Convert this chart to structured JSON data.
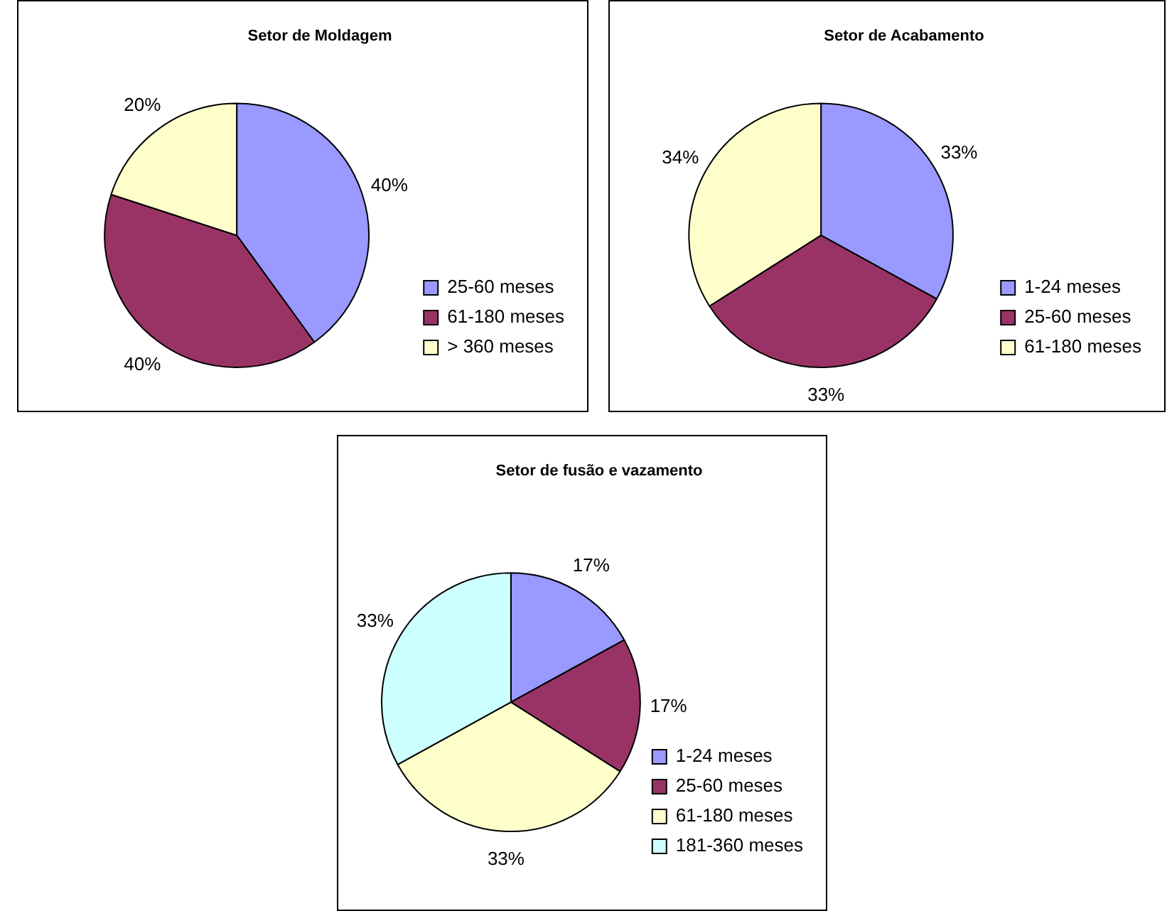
{
  "chart_data": [
    {
      "type": "pie",
      "title": "Setor de Moldagem",
      "categories": [
        "25-60 meses",
        "61-180 meses",
        "> 360 meses"
      ],
      "values": [
        40,
        40,
        20
      ],
      "colors": [
        "#9999ff",
        "#993366",
        "#ffffcc"
      ],
      "value_labels": [
        "40%",
        "40%",
        "20%"
      ],
      "legend": "bottom right"
    },
    {
      "type": "pie",
      "title": "Setor de Acabamento",
      "categories": [
        "1-24 meses",
        "25-60 meses",
        "61-180 meses"
      ],
      "values": [
        33,
        33,
        34
      ],
      "colors": [
        "#9999ff",
        "#993366",
        "#ffffcc"
      ],
      "value_labels": [
        "33%",
        "33%",
        "34%"
      ],
      "legend": "bottom right"
    },
    {
      "type": "pie",
      "title": "Setor de fusão e vazamento",
      "categories": [
        "1-24 meses",
        "25-60 meses",
        "61-180 meses",
        "181-360 meses"
      ],
      "values": [
        17,
        17,
        33,
        33
      ],
      "colors": [
        "#9999ff",
        "#993366",
        "#ffffcc",
        "#ccffff"
      ],
      "value_labels": [
        "17%",
        "17%",
        "33%",
        "33%"
      ],
      "legend": "bottom right"
    }
  ]
}
